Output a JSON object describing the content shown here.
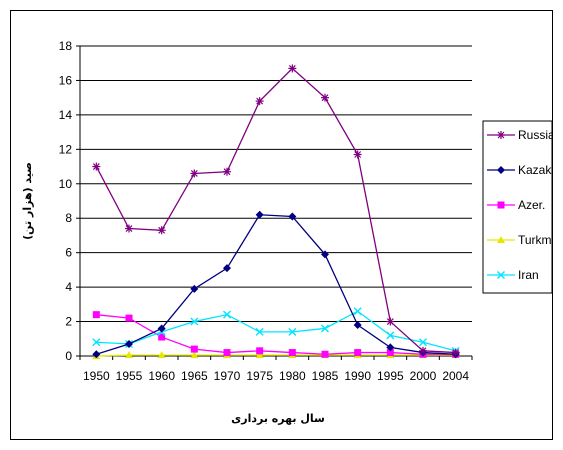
{
  "chart_data": {
    "type": "line",
    "title": "",
    "xlabel": "سال بهره برداری",
    "ylabel": "صید (هزار تن)",
    "x": [
      "1950",
      "1955",
      "1960",
      "1965",
      "1970",
      "1975",
      "1980",
      "1985",
      "1990",
      "1995",
      "2000",
      "2004"
    ],
    "ylim": [
      0,
      18
    ],
    "yticks": [
      0,
      2,
      4,
      6,
      8,
      10,
      12,
      14,
      16,
      18
    ],
    "grid": "horizontal",
    "legend": "right",
    "series": [
      {
        "name": "Russia",
        "color": "#800080",
        "marker": "asterisk",
        "values": [
          11.0,
          7.4,
          7.3,
          10.6,
          10.7,
          14.8,
          16.7,
          15.0,
          11.7,
          2.0,
          0.3,
          0.2
        ]
      },
      {
        "name": "Kazakh.",
        "color": "#000080",
        "marker": "diamond",
        "values": [
          0.1,
          0.7,
          1.6,
          3.9,
          5.1,
          8.2,
          8.1,
          5.9,
          1.8,
          0.5,
          0.2,
          0.1
        ]
      },
      {
        "name": "Azer.",
        "color": "#ff00ff",
        "marker": "square",
        "values": [
          2.4,
          2.2,
          1.1,
          0.4,
          0.2,
          0.3,
          0.2,
          0.1,
          0.2,
          0.2,
          0.1,
          0.1
        ]
      },
      {
        "name": "Turkmen.",
        "color": "#e6e600",
        "marker": "triangle",
        "values": [
          0.0,
          0.05,
          0.05,
          0.05,
          0.05,
          0.05,
          0.05,
          0.05,
          0.05,
          0.05,
          0.05,
          0.05
        ]
      },
      {
        "name": "Iran",
        "color": "#00e5ff",
        "marker": "x",
        "values": [
          0.8,
          0.7,
          1.4,
          2.0,
          2.4,
          1.4,
          1.4,
          1.6,
          2.6,
          1.2,
          0.8,
          0.3
        ]
      }
    ]
  }
}
